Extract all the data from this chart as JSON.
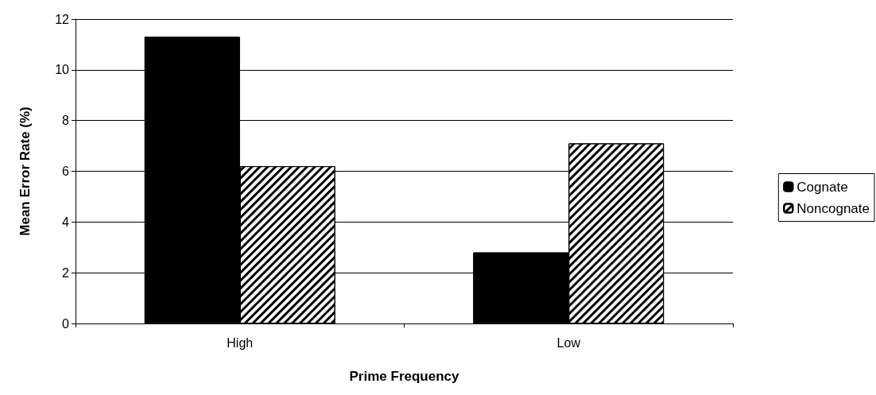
{
  "chart_data": {
    "type": "bar",
    "xlabel": "Prime Frequency",
    "ylabel": "Mean Error Rate (%)",
    "categories": [
      "High",
      "Low"
    ],
    "series": [
      {
        "name": "Cognate",
        "color": "#000000",
        "values": [
          11.3,
          2.8
        ]
      },
      {
        "name": "Noncognate",
        "color": "#ffffff",
        "values": [
          6.2,
          7.1
        ]
      }
    ],
    "ylim": [
      0,
      12
    ],
    "yticks": [
      0,
      2,
      4,
      6,
      8,
      10,
      12
    ],
    "grid": "y",
    "legend": "right"
  }
}
